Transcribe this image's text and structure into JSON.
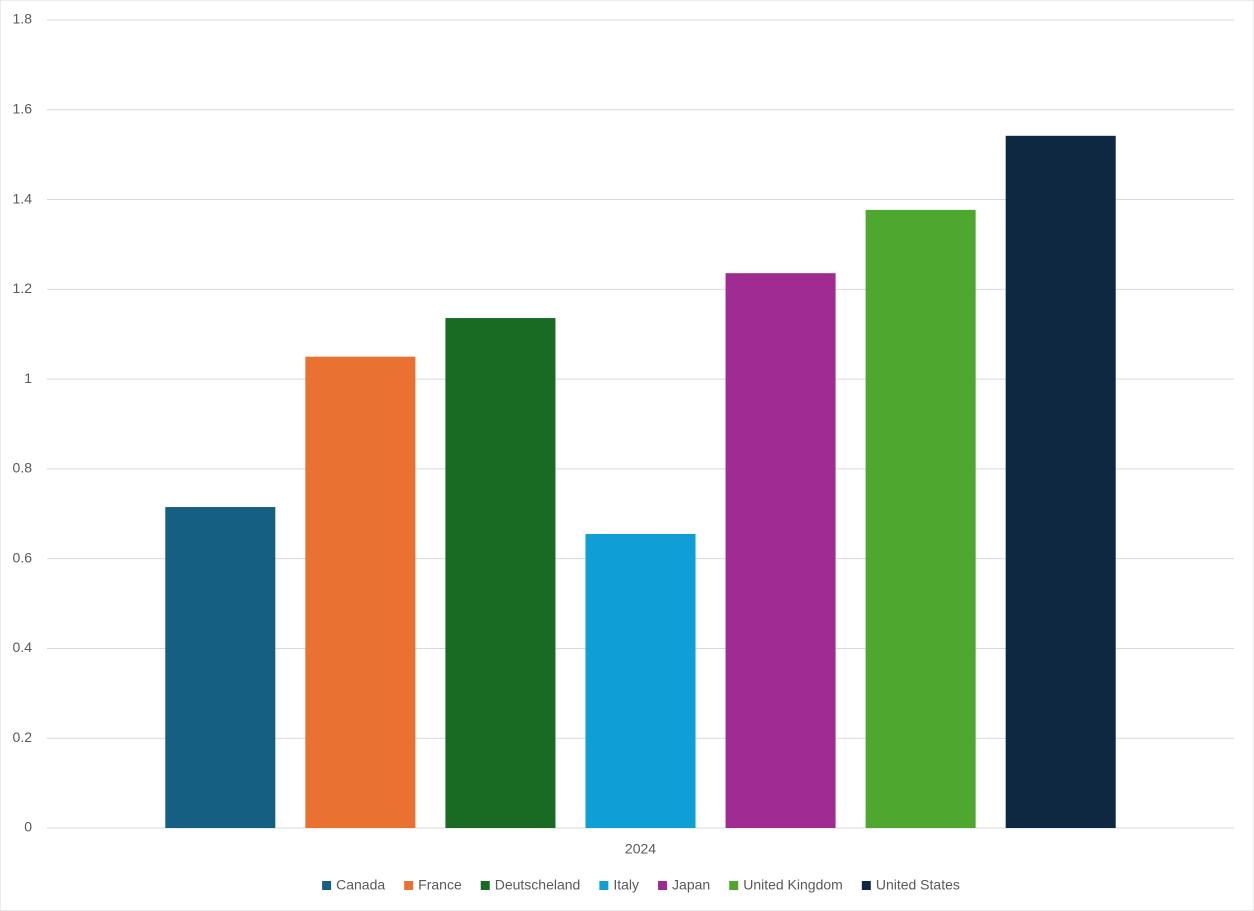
{
  "chart_data": {
    "type": "bar",
    "categories": [
      "2024"
    ],
    "series": [
      {
        "name": "Canada",
        "color": "#156082",
        "values": [
          0.715
        ]
      },
      {
        "name": "France",
        "color": "#E97132",
        "values": [
          1.05
        ]
      },
      {
        "name": "Deutscheland",
        "color": "#196B24",
        "values": [
          1.136
        ]
      },
      {
        "name": "Italy",
        "color": "#0F9ED5",
        "values": [
          0.655
        ]
      },
      {
        "name": "Japan",
        "color": "#A02B93",
        "values": [
          1.236
        ]
      },
      {
        "name": "United Kingdom",
        "color": "#4EA72E",
        "values": [
          1.377
        ]
      },
      {
        "name": "United States",
        "color": "#0E2841",
        "values": [
          1.542
        ]
      }
    ],
    "ylim": [
      0,
      1.8
    ],
    "yticks": [
      0,
      0.2,
      0.4,
      0.6,
      0.8,
      1,
      1.2,
      1.4,
      1.6,
      1.8
    ],
    "grid": true,
    "legend": "bottom"
  }
}
